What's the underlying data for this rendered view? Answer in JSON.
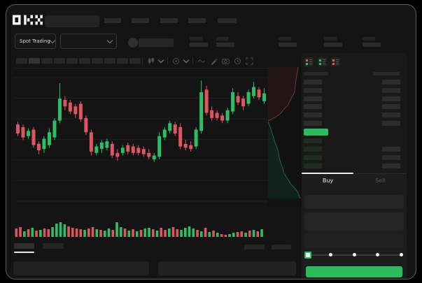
{
  "header": {
    "logo": "OKX",
    "nav_placeholder_widths": [
      24,
      25,
      25,
      25,
      27
    ],
    "spot_trading_label": "Spot Trading",
    "ticker_stat_groups": 5
  },
  "toolbar": {
    "timeframe_slots": 10,
    "icons": [
      "candle-style-icon",
      "chevron-down-icon",
      "indicator-icon",
      "chevron-down-icon",
      "wave-icon",
      "draw-icon",
      "camera-icon",
      "clock-icon",
      "fullscreen-icon"
    ]
  },
  "colors": {
    "up_green": "#2dbd64",
    "down_red": "#dd5560",
    "last_price_green": "#2abd5e",
    "depth_ask_fill": "#221417",
    "depth_ask_line": "#6e3a40",
    "depth_bid_fill": "#11211c",
    "depth_bid_line": "#2f5c52",
    "grid": "#1e1e1e",
    "placeholder": "#2a2a2a"
  },
  "chart_data": {
    "type": "candlestick",
    "title": "",
    "xlabel": "",
    "ylabel": "",
    "ylim": [
      0,
      100
    ],
    "grid": "horizontal-only",
    "note_axes": "no numeric axis labels visible; values in relative 0-100 scale",
    "candles_ohlc": [
      [
        61,
        63,
        52,
        54
      ],
      [
        59,
        61,
        49,
        51
      ],
      [
        52,
        58,
        50,
        56
      ],
      [
        57,
        59,
        43,
        45
      ],
      [
        46,
        48,
        38,
        41
      ],
      [
        42,
        52,
        39,
        50
      ],
      [
        45,
        58,
        43,
        55
      ],
      [
        51,
        66,
        49,
        64
      ],
      [
        64,
        93,
        62,
        81
      ],
      [
        80,
        83,
        72,
        75
      ],
      [
        78,
        80,
        69,
        71
      ],
      [
        75,
        77,
        66,
        69
      ],
      [
        77,
        79,
        63,
        65
      ],
      [
        66,
        68,
        53,
        55
      ],
      [
        55,
        57,
        37,
        40
      ],
      [
        39,
        46,
        37,
        44
      ],
      [
        42,
        49,
        39,
        47
      ],
      [
        43,
        50,
        41,
        48
      ],
      [
        46,
        48,
        35,
        37
      ],
      [
        39,
        42,
        33,
        36
      ],
      [
        39,
        45,
        37,
        43
      ],
      [
        45,
        47,
        38,
        40
      ],
      [
        44,
        46,
        37,
        39
      ],
      [
        43,
        45,
        37,
        39
      ],
      [
        42,
        44,
        36,
        38
      ],
      [
        39,
        42,
        34,
        36
      ],
      [
        34,
        39,
        32,
        37
      ],
      [
        36,
        55,
        34,
        52
      ],
      [
        51,
        59,
        49,
        57
      ],
      [
        56,
        64,
        54,
        62
      ],
      [
        61,
        63,
        52,
        54
      ],
      [
        59,
        62,
        42,
        44
      ],
      [
        46,
        49,
        41,
        43
      ],
      [
        45,
        48,
        40,
        42
      ],
      [
        44,
        59,
        42,
        57
      ],
      [
        56,
        95,
        54,
        86
      ],
      [
        88,
        91,
        68,
        70
      ],
      [
        72,
        75,
        64,
        66
      ],
      [
        70,
        72,
        64,
        66
      ],
      [
        68,
        70,
        62,
        64
      ],
      [
        64,
        74,
        62,
        72
      ],
      [
        71,
        89,
        69,
        86
      ],
      [
        83,
        86,
        76,
        78
      ],
      [
        81,
        83,
        72,
        75
      ],
      [
        77,
        88,
        75,
        86
      ],
      [
        83,
        94,
        81,
        90
      ],
      [
        88,
        90,
        80,
        82
      ],
      [
        79,
        89,
        77,
        85
      ]
    ],
    "volume_bars": [
      [
        12,
        "r"
      ],
      [
        14,
        "r"
      ],
      [
        8,
        "g"
      ],
      [
        11,
        "r"
      ],
      [
        13,
        "g"
      ],
      [
        9,
        "r"
      ],
      [
        10,
        "g"
      ],
      [
        12,
        "r"
      ],
      [
        11,
        "r"
      ],
      [
        14,
        "g"
      ],
      [
        19,
        "g"
      ],
      [
        21,
        "g"
      ],
      [
        18,
        "g"
      ],
      [
        15,
        "r"
      ],
      [
        13,
        "r"
      ],
      [
        12,
        "r"
      ],
      [
        11,
        "r"
      ],
      [
        10,
        "g"
      ],
      [
        12,
        "r"
      ],
      [
        14,
        "r"
      ],
      [
        11,
        "g"
      ],
      [
        10,
        "r"
      ],
      [
        9,
        "g"
      ],
      [
        12,
        "g"
      ],
      [
        10,
        "r"
      ],
      [
        21,
        "g"
      ],
      [
        14,
        "g"
      ],
      [
        12,
        "r"
      ],
      [
        9,
        "g"
      ],
      [
        11,
        "r"
      ],
      [
        8,
        "g"
      ],
      [
        10,
        "r"
      ],
      [
        12,
        "g"
      ],
      [
        13,
        "g"
      ],
      [
        11,
        "r"
      ],
      [
        9,
        "g"
      ],
      [
        13,
        "r"
      ],
      [
        10,
        "r"
      ],
      [
        12,
        "g"
      ],
      [
        14,
        "r"
      ],
      [
        11,
        "r"
      ],
      [
        10,
        "g"
      ],
      [
        13,
        "g"
      ],
      [
        15,
        "g"
      ],
      [
        12,
        "g"
      ],
      [
        10,
        "r"
      ],
      [
        8,
        "g"
      ],
      [
        13,
        "r"
      ],
      [
        7,
        "g"
      ],
      [
        9,
        "r"
      ],
      [
        6,
        "g"
      ],
      [
        4,
        "r"
      ],
      [
        3,
        "r"
      ],
      [
        4,
        "g"
      ],
      [
        6,
        "g"
      ],
      [
        7,
        "r"
      ],
      [
        8,
        "r"
      ],
      [
        6,
        "g"
      ],
      [
        9,
        "r"
      ],
      [
        10,
        "g"
      ],
      [
        8,
        "r"
      ],
      [
        11,
        "g"
      ]
    ],
    "depth_profile": {
      "asks_curve": [
        [
          43,
          0
        ],
        [
          41,
          13
        ],
        [
          39,
          25
        ],
        [
          38,
          36
        ],
        [
          33,
          45
        ],
        [
          28,
          55
        ],
        [
          23,
          60
        ],
        [
          19,
          65
        ],
        [
          16,
          68
        ],
        [
          13,
          70
        ],
        [
          8,
          73
        ],
        [
          5,
          75
        ],
        [
          2,
          76
        ],
        [
          0,
          77
        ]
      ],
      "bids_curve": [
        [
          0,
          78
        ],
        [
          2,
          83
        ],
        [
          4,
          88
        ],
        [
          6,
          95
        ],
        [
          8,
          101
        ],
        [
          10,
          108
        ],
        [
          13,
          115
        ],
        [
          15,
          123
        ],
        [
          16,
          129
        ],
        [
          18,
          137
        ],
        [
          21,
          145
        ],
        [
          23,
          152
        ],
        [
          26,
          157
        ],
        [
          30,
          163
        ],
        [
          33,
          168
        ],
        [
          38,
          173
        ],
        [
          42,
          178
        ],
        [
          44,
          183
        ],
        [
          46,
          188
        ]
      ]
    }
  },
  "orderbook": {
    "view_icons": [
      "both",
      "bids",
      "asks"
    ],
    "header_columns": 2,
    "ask_rows": 6,
    "bid_rows": 4,
    "last_price_direction": "up"
  },
  "trade_panel": {
    "buy_tab": "Buy",
    "sell_tab": "Sell",
    "input_fields": 3,
    "slider_stops": 5,
    "slider_value_index": 0
  },
  "bottom_section": {
    "tabs": 2,
    "active_tab_index": 0,
    "right_placeholders": 2,
    "panels": 2
  }
}
